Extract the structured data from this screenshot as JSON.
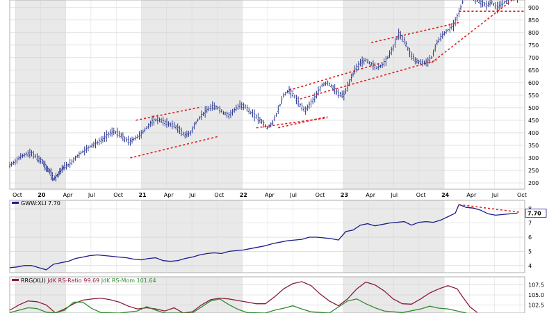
{
  "chart_data": [
    {
      "type": "ohlc",
      "panel": "price",
      "x_labels": [
        "Oct",
        "20",
        "Apr",
        "Jul",
        "Oct",
        "21",
        "Apr",
        "Jul",
        "Oct",
        "22",
        "Apr",
        "Jul",
        "Oct",
        "23",
        "Apr",
        "Jul",
        "Oct",
        "24",
        "Apr",
        "Jul",
        "Oct"
      ],
      "y_ticks": [
        200,
        250,
        300,
        350,
        400,
        450,
        500,
        550,
        600,
        650,
        700,
        750,
        800,
        850,
        900
      ],
      "ylim": [
        175,
        930
      ],
      "series_points": [
        [
          0,
          270
        ],
        [
          3,
          285
        ],
        [
          6,
          305
        ],
        [
          9,
          315
        ],
        [
          12,
          318
        ],
        [
          15,
          300
        ],
        [
          18,
          285
        ],
        [
          20,
          260
        ],
        [
          22,
          245
        ],
        [
          24,
          215
        ],
        [
          26,
          230
        ],
        [
          28,
          250
        ],
        [
          30,
          265
        ],
        [
          33,
          275
        ],
        [
          36,
          300
        ],
        [
          39,
          320
        ],
        [
          42,
          335
        ],
        [
          45,
          350
        ],
        [
          48,
          360
        ],
        [
          51,
          375
        ],
        [
          54,
          395
        ],
        [
          57,
          405
        ],
        [
          60,
          395
        ],
        [
          63,
          375
        ],
        [
          66,
          365
        ],
        [
          69,
          380
        ],
        [
          72,
          395
        ],
        [
          75,
          420
        ],
        [
          78,
          445
        ],
        [
          81,
          455
        ],
        [
          84,
          445
        ],
        [
          87,
          435
        ],
        [
          90,
          430
        ],
        [
          93,
          410
        ],
        [
          96,
          390
        ],
        [
          99,
          400
        ],
        [
          102,
          440
        ],
        [
          105,
          470
        ],
        [
          108,
          490
        ],
        [
          111,
          505
        ],
        [
          114,
          500
        ],
        [
          117,
          480
        ],
        [
          120,
          470
        ],
        [
          123,
          490
        ],
        [
          126,
          510
        ],
        [
          129,
          505
        ],
        [
          132,
          480
        ],
        [
          135,
          465
        ],
        [
          138,
          445
        ],
        [
          141,
          420
        ],
        [
          144,
          440
        ],
        [
          147,
          490
        ],
        [
          150,
          550
        ],
        [
          153,
          570
        ],
        [
          156,
          545
        ],
        [
          159,
          510
        ],
        [
          162,
          490
        ],
        [
          165,
          520
        ],
        [
          168,
          550
        ],
        [
          171,
          590
        ],
        [
          174,
          600
        ],
        [
          177,
          580
        ],
        [
          180,
          555
        ],
        [
          183,
          550
        ],
        [
          186,
          600
        ],
        [
          189,
          650
        ],
        [
          192,
          680
        ],
        [
          195,
          690
        ],
        [
          198,
          675
        ],
        [
          201,
          660
        ],
        [
          204,
          670
        ],
        [
          207,
          700
        ],
        [
          210,
          740
        ],
        [
          213,
          795
        ],
        [
          216,
          770
        ],
        [
          219,
          720
        ],
        [
          222,
          690
        ],
        [
          225,
          680
        ],
        [
          228,
          680
        ],
        [
          231,
          700
        ],
        [
          234,
          760
        ],
        [
          237,
          790
        ],
        [
          240,
          810
        ],
        [
          243,
          830
        ],
        [
          246,
          880
        ],
        [
          249,
          940
        ],
        [
          252,
          960
        ],
        [
          255,
          930
        ],
        [
          258,
          920
        ],
        [
          261,
          910
        ],
        [
          264,
          920
        ],
        [
          267,
          900
        ],
        [
          270,
          915
        ],
        [
          273,
          935
        ],
        [
          276,
          945
        ],
        [
          279,
          940
        ]
      ],
      "trendlines": [
        {
          "from": [
            66,
            300
          ],
          "to": [
            114,
            385
          ]
        },
        {
          "from": [
            69,
            450
          ],
          "to": [
            105,
            503
          ]
        },
        {
          "from": [
            135,
            420
          ],
          "to": [
            174,
            460
          ]
        },
        {
          "from": [
            153,
            570
          ],
          "to": [
            204,
            680
          ]
        },
        {
          "from": [
            147,
            420
          ],
          "to": [
            174,
            465
          ]
        },
        {
          "from": [
            159,
            535
          ],
          "to": [
            234,
            690
          ]
        },
        {
          "from": [
            198,
            760
          ],
          "to": [
            246,
            840
          ]
        },
        {
          "from": [
            231,
            680
          ],
          "to": [
            276,
            935
          ]
        },
        {
          "from": [
            246,
            885
          ],
          "to": [
            282,
            885
          ]
        }
      ],
      "grid": "shaded alternating years"
    },
    {
      "type": "line",
      "panel": "ratio",
      "legend": "GWW:XLI 7.70",
      "last_value_label": "7.70",
      "y_ticks": [
        4,
        5,
        6,
        7,
        8
      ],
      "ylim": [
        3.5,
        8.6
      ],
      "color": "#1a1a8c",
      "points": [
        [
          0,
          3.85
        ],
        [
          4,
          3.9
        ],
        [
          8,
          4.0
        ],
        [
          12,
          4.0
        ],
        [
          16,
          3.85
        ],
        [
          20,
          3.7
        ],
        [
          24,
          4.1
        ],
        [
          28,
          4.2
        ],
        [
          32,
          4.3
        ],
        [
          36,
          4.5
        ],
        [
          40,
          4.6
        ],
        [
          44,
          4.7
        ],
        [
          48,
          4.75
        ],
        [
          52,
          4.7
        ],
        [
          56,
          4.65
        ],
        [
          60,
          4.6
        ],
        [
          64,
          4.55
        ],
        [
          68,
          4.45
        ],
        [
          72,
          4.4
        ],
        [
          76,
          4.5
        ],
        [
          80,
          4.55
        ],
        [
          84,
          4.35
        ],
        [
          88,
          4.3
        ],
        [
          92,
          4.35
        ],
        [
          96,
          4.5
        ],
        [
          100,
          4.6
        ],
        [
          104,
          4.75
        ],
        [
          108,
          4.85
        ],
        [
          112,
          4.9
        ],
        [
          116,
          4.85
        ],
        [
          120,
          5.0
        ],
        [
          124,
          5.05
        ],
        [
          128,
          5.1
        ],
        [
          132,
          5.2
        ],
        [
          136,
          5.3
        ],
        [
          140,
          5.4
        ],
        [
          144,
          5.55
        ],
        [
          148,
          5.65
        ],
        [
          152,
          5.75
        ],
        [
          156,
          5.8
        ],
        [
          160,
          5.85
        ],
        [
          164,
          6.0
        ],
        [
          168,
          6.0
        ],
        [
          172,
          5.95
        ],
        [
          176,
          5.9
        ],
        [
          180,
          5.8
        ],
        [
          184,
          6.4
        ],
        [
          188,
          6.5
        ],
        [
          192,
          6.85
        ],
        [
          196,
          6.95
        ],
        [
          200,
          6.8
        ],
        [
          204,
          6.9
        ],
        [
          208,
          7.0
        ],
        [
          212,
          7.05
        ],
        [
          216,
          7.1
        ],
        [
          220,
          6.85
        ],
        [
          224,
          7.05
        ],
        [
          228,
          7.1
        ],
        [
          232,
          7.05
        ],
        [
          236,
          7.2
        ],
        [
          240,
          7.45
        ],
        [
          244,
          7.7
        ],
        [
          246,
          8.3
        ],
        [
          250,
          8.1
        ],
        [
          254,
          8.05
        ],
        [
          258,
          7.9
        ],
        [
          262,
          7.65
        ],
        [
          266,
          7.55
        ],
        [
          270,
          7.6
        ],
        [
          274,
          7.65
        ],
        [
          278,
          7.7
        ]
      ],
      "trendline": {
        "from": [
          246,
          8.3
        ],
        "to": [
          280,
          7.75
        ]
      }
    },
    {
      "type": "line",
      "panel": "rrg",
      "legend": "RRG(XLI) JdK RS-Ratio 99.69 JdK RS-Mom 101.64",
      "legend_parts": {
        "prefix": "RRG(XLI)",
        "ratio": "JdK RS-Ratio 99.69",
        "mom": "JdK RS-Mom 101.64"
      },
      "y_ticks": [
        102.5,
        105.0,
        107.5
      ],
      "ylim": [
        100.5,
        109.5
      ],
      "series": [
        {
          "name": "JdK RS-Ratio",
          "color": "#8b1a3a",
          "points": [
            [
              0,
              101.2
            ],
            [
              5,
              102.5
            ],
            [
              10,
              103.5
            ],
            [
              15,
              103.3
            ],
            [
              20,
              102.5
            ],
            [
              25,
              100.5
            ],
            [
              30,
              101.5
            ],
            [
              35,
              102.8
            ],
            [
              40,
              103.7
            ],
            [
              45,
              104.0
            ],
            [
              50,
              104.2
            ],
            [
              55,
              103.8
            ],
            [
              60,
              103.2
            ],
            [
              65,
              102.2
            ],
            [
              70,
              101.5
            ],
            [
              75,
              101.8
            ],
            [
              80,
              101.5
            ],
            [
              85,
              101.0
            ],
            [
              90,
              101.8
            ],
            [
              95,
              100.5
            ],
            [
              100,
              100.8
            ],
            [
              105,
              102.5
            ],
            [
              110,
              103.8
            ],
            [
              115,
              104.2
            ],
            [
              120,
              104.0
            ],
            [
              125,
              103.6
            ],
            [
              130,
              103.2
            ],
            [
              135,
              102.8
            ],
            [
              140,
              102.8
            ],
            [
              145,
              104.5
            ],
            [
              150,
              106.5
            ],
            [
              155,
              107.8
            ],
            [
              160,
              108.3
            ],
            [
              165,
              107.3
            ],
            [
              170,
              105.2
            ],
            [
              175,
              103.5
            ],
            [
              180,
              102.3
            ],
            [
              185,
              104.0
            ],
            [
              190,
              106.5
            ],
            [
              195,
              108.2
            ],
            [
              200,
              107.5
            ],
            [
              205,
              106.0
            ],
            [
              210,
              104.0
            ],
            [
              215,
              102.8
            ],
            [
              220,
              102.7
            ],
            [
              225,
              104.0
            ],
            [
              230,
              105.5
            ],
            [
              235,
              106.5
            ],
            [
              240,
              107.3
            ],
            [
              245,
              106.5
            ],
            [
              248,
              104.5
            ],
            [
              252,
              102.0
            ],
            [
              256,
              100.6
            ]
          ]
        },
        {
          "name": "JdK RS-Mom",
          "color": "#2e8b2e",
          "points": [
            [
              0,
              100.6
            ],
            [
              5,
              101.2
            ],
            [
              10,
              101.8
            ],
            [
              15,
              101.6
            ],
            [
              20,
              100.7
            ],
            [
              25,
              100.5
            ],
            [
              30,
              101.2
            ],
            [
              35,
              103.2
            ],
            [
              40,
              103.2
            ],
            [
              45,
              101.6
            ],
            [
              50,
              100.6
            ],
            [
              60,
              100.5
            ],
            [
              70,
              101.0
            ],
            [
              75,
              102.1
            ],
            [
              80,
              101.2
            ],
            [
              85,
              100.5
            ],
            [
              100,
              100.5
            ],
            [
              110,
              103.5
            ],
            [
              115,
              104.0
            ],
            [
              120,
              102.6
            ],
            [
              125,
              101.4
            ],
            [
              130,
              100.6
            ],
            [
              140,
              100.5
            ],
            [
              145,
              101.2
            ],
            [
              150,
              101.7
            ],
            [
              155,
              102.3
            ],
            [
              160,
              101.5
            ],
            [
              165,
              100.8
            ],
            [
              175,
              100.5
            ],
            [
              185,
              103.5
            ],
            [
              190,
              104.0
            ],
            [
              195,
              102.8
            ],
            [
              200,
              101.8
            ],
            [
              205,
              101.0
            ],
            [
              215,
              100.6
            ],
            [
              225,
              101.5
            ],
            [
              230,
              102.2
            ],
            [
              235,
              101.7
            ],
            [
              240,
              101.5
            ],
            [
              245,
              101.0
            ],
            [
              250,
              100.5
            ]
          ]
        }
      ]
    }
  ]
}
